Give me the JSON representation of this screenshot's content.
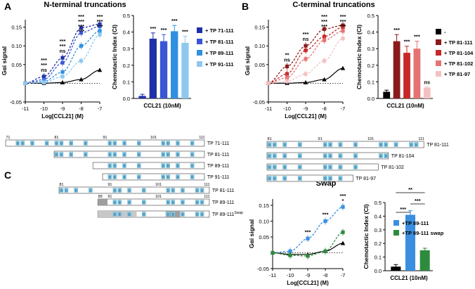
{
  "colors": {
    "black": "#000000",
    "n71": "#1f2fa8",
    "n81": "#3a56d6",
    "n89": "#2f8fe0",
    "n91": "#8fc8ee",
    "c111": "#8b1a1a",
    "c104": "#c62828",
    "c102": "#e57373",
    "c97": "#f4c1c1",
    "sw89": "#3a8ee0",
    "swap": "#2e8b3e",
    "seqbox": "#7cc1df",
    "shade": "#9e9e9e"
  },
  "panel_labels": {
    "a": "A",
    "b": "B",
    "c": "C"
  },
  "chart_data": [
    {
      "id": "A_dose",
      "type": "line",
      "title": "N-terminal truncations",
      "xlabel": "Log[CCL21] (M)",
      "ylabel": "Gαi signal",
      "x": [
        -11,
        -10,
        -9,
        -8,
        -7
      ],
      "xticks": [
        "-11",
        "-10",
        "-9",
        "-8",
        "-7"
      ],
      "yticks": [
        "-0.05",
        "0.05",
        "0.10",
        "0.15"
      ],
      "ylim": [
        -0.05,
        0.17
      ],
      "baseline_dotted": 0,
      "series": [
        {
          "name": "CCL21",
          "color": "#000000",
          "marker": "triangle",
          "values": [
            0,
            0,
            0.002,
            0.01,
            0.035
          ]
        },
        {
          "name": "+ TP 71-111",
          "color": "#1f2fa8",
          "marker": "square",
          "values": [
            0,
            0.018,
            0.068,
            0.148,
            0.158
          ]
        },
        {
          "name": "+ TP 81-111",
          "color": "#3a56d6",
          "marker": "square",
          "values": [
            0,
            0.01,
            0.055,
            0.135,
            0.152
          ]
        },
        {
          "name": "+ TP 89-111",
          "color": "#2f8fe0",
          "marker": "square",
          "values": [
            0,
            0.005,
            0.03,
            0.1,
            0.14
          ]
        },
        {
          "name": "+ TP 91-111",
          "color": "#8fc8ee",
          "marker": "square",
          "values": [
            0,
            0.002,
            0.018,
            0.06,
            0.13
          ]
        }
      ],
      "annotations": [
        {
          "x": -10,
          "lines": [
            "***",
            "***",
            "ns"
          ]
        },
        {
          "x": -9,
          "lines": [
            "***",
            "***",
            "ns"
          ]
        },
        {
          "x": -8,
          "lines": [
            "***",
            "***",
            "***",
            "***"
          ]
        },
        {
          "x": -7,
          "lines": [
            "***",
            "***",
            "***"
          ]
        }
      ]
    },
    {
      "id": "A_bar",
      "type": "bar",
      "ylabel": "Chemotactic Index (CI)",
      "xlabel": "CCL21   (10nM)",
      "ylim": [
        0,
        0.5
      ],
      "yticks": [
        "0.0",
        "0.1",
        "0.2",
        "0.3",
        "0.4",
        "0.5"
      ],
      "bars": [
        {
          "name": "CCL21",
          "value": 0.015,
          "err": 0.01,
          "color": "#1f2fa8",
          "sig": ""
        },
        {
          "name": "+ TP 71-111",
          "value": 0.36,
          "err": 0.035,
          "color": "#1f2fa8",
          "sig": "***"
        },
        {
          "name": "+ TP 81-111",
          "value": 0.345,
          "err": 0.04,
          "color": "#3a56d6",
          "sig": "***"
        },
        {
          "name": "+ TP 89-111",
          "value": 0.405,
          "err": 0.035,
          "color": "#2f8fe0",
          "sig": "***"
        },
        {
          "name": "+ TP 91-111",
          "value": 0.335,
          "err": 0.04,
          "color": "#8fc8ee",
          "sig": "***"
        }
      ],
      "legend": [
        "+ TP 71-111",
        "+ TP 81-111",
        "+ TP 89-111",
        "+ TP 91-111"
      ]
    },
    {
      "id": "B_dose",
      "type": "line",
      "title": "C-terminal truncations",
      "xlabel": "Log[CCL21] (M)",
      "ylabel": "Gαi signal",
      "x": [
        -11,
        -10,
        -9,
        -8,
        -7
      ],
      "xticks": [
        "-11",
        "-10",
        "-9",
        "-8",
        "-7"
      ],
      "yticks": [
        "-0.05",
        "0.05",
        "0.10",
        "0.15"
      ],
      "ylim": [
        -0.05,
        0.17
      ],
      "baseline_dotted": 0,
      "series": [
        {
          "name": "CCL21",
          "color": "#000000",
          "marker": "triangle",
          "values": [
            0,
            0,
            0.002,
            0.01,
            0.04
          ]
        },
        {
          "name": "+ TP 81-111",
          "color": "#8b1a1a",
          "marker": "square",
          "values": [
            0,
            0.045,
            0.1,
            0.145,
            0.155
          ]
        },
        {
          "name": "+ TP 81-104",
          "color": "#c62828",
          "marker": "square",
          "values": [
            0,
            0.025,
            0.088,
            0.125,
            0.15
          ]
        },
        {
          "name": "+ TP 81-102",
          "color": "#e57373",
          "marker": "square",
          "values": [
            0,
            0.015,
            0.065,
            0.115,
            0.14
          ]
        },
        {
          "name": "+ TP 81-97",
          "color": "#f4c1c1",
          "marker": "square",
          "values": [
            0,
            0.005,
            0.025,
            0.06,
            0.12
          ]
        }
      ],
      "annotations": [
        {
          "x": -10,
          "lines": [
            "**",
            "ns"
          ]
        },
        {
          "x": -9,
          "lines": [
            "***",
            "ns"
          ]
        },
        {
          "x": -8,
          "lines": [
            "***",
            "***",
            "***"
          ]
        },
        {
          "x": -7,
          "lines": [
            "***",
            "***",
            "***"
          ]
        }
      ]
    },
    {
      "id": "B_bar",
      "type": "bar",
      "ylabel": "Chemotactic Index (CI)",
      "xlabel": "CCL21   (10nM)",
      "ylim": [
        0,
        0.5
      ],
      "yticks": [
        "0.0",
        "0.1",
        "0.2",
        "0.3",
        "0.4",
        "0.5"
      ],
      "bars": [
        {
          "name": "-",
          "value": 0.04,
          "err": 0.01,
          "color": "#000000",
          "sig": ""
        },
        {
          "name": "+ TP 81-111",
          "value": 0.345,
          "err": 0.04,
          "color": "#8b1a1a",
          "sig": "***"
        },
        {
          "name": "+ TP 81-104",
          "value": 0.275,
          "err": 0.04,
          "color": "#c62828",
          "sig": "***"
        },
        {
          "name": "+ TP 81-102",
          "value": 0.3,
          "err": 0.045,
          "color": "#e57373",
          "sig": "***"
        },
        {
          "name": "+ TP 81-97",
          "value": 0.065,
          "err": 0.005,
          "color": "#f4c1c1",
          "sig": "ns"
        }
      ],
      "legend": [
        "-",
        "+ TP 81-111",
        "+ TP 81-104",
        "+ TP 81-102",
        "+ TP 81-97"
      ]
    },
    {
      "id": "C_dose",
      "type": "line",
      "title": "Swap",
      "xlabel": "Log[CCL21] (M)",
      "ylabel": "Gαi signal",
      "x": [
        -11,
        -10,
        -9,
        -8,
        -7
      ],
      "xticks": [
        "-11",
        "-10",
        "-9",
        "-8",
        "-7"
      ],
      "yticks": [
        "-0.05",
        "0.05",
        "0.10",
        "0.15"
      ],
      "ylim": [
        -0.05,
        0.17
      ],
      "baseline_dotted": 0,
      "series": [
        {
          "name": "CCL21",
          "color": "#000000",
          "marker": "triangle",
          "values": [
            0,
            -0.005,
            -0.005,
            0.005,
            0.03
          ]
        },
        {
          "name": "+TP 89-111",
          "color": "#3a8ee0",
          "marker": "square",
          "values": [
            0,
            0.005,
            0.045,
            0.1,
            0.145
          ]
        },
        {
          "name": "+TP 89-111 swap",
          "color": "#2e8b3e",
          "marker": "square",
          "values": [
            0,
            -0.008,
            -0.01,
            0.005,
            0.065
          ]
        }
      ],
      "annotations": [
        {
          "x": -9,
          "lines": [
            "***"
          ]
        },
        {
          "x": -8,
          "lines": [
            "***"
          ]
        },
        {
          "x": -7,
          "lines": [
            "***",
            "*"
          ]
        }
      ]
    },
    {
      "id": "C_bar",
      "type": "bar",
      "ylabel": "Chemotactic Index (CI)",
      "xlabel": "CCL21   (10nM)",
      "ylim": [
        0,
        0.5
      ],
      "yticks": [
        "0.0",
        "0.1",
        "0.2",
        "0.3",
        "0.4",
        "0.5"
      ],
      "bars": [
        {
          "name": "CCL21",
          "value": 0.03,
          "err": 0.015,
          "color": "#000000"
        },
        {
          "name": "+TP 89-111",
          "value": 0.41,
          "err": 0.03,
          "color": "#3a8ee0"
        },
        {
          "name": "+TP 89-111 swap",
          "value": 0.15,
          "err": 0.015,
          "color": "#2e8b3e"
        }
      ],
      "legend": [
        "+TP 89-111",
        "+TP 89-111 swap"
      ],
      "brackets": [
        {
          "from": 0,
          "to": 2,
          "label": "**"
        },
        {
          "from": 0,
          "to": 1,
          "label": "***"
        },
        {
          "from": 1,
          "to": 2,
          "label": "***"
        }
      ]
    }
  ],
  "constructs_A": [
    {
      "label": "TP 71-111",
      "start": 71,
      "end": 111
    },
    {
      "label": "TP 81-111",
      "start": 81,
      "end": 111
    },
    {
      "label": "TP 89-111",
      "start": 89,
      "end": 111
    },
    {
      "label": "TP 91-111",
      "start": 91,
      "end": 111
    }
  ],
  "constructs_A_numbers": [
    "71",
    "81",
    "91",
    "101",
    "111"
  ],
  "constructs_B": [
    {
      "label": "TP 81-111",
      "start": 81,
      "end": 111
    },
    {
      "label": "TP 81-104",
      "start": 81,
      "end": 104
    },
    {
      "label": "TP 81-102",
      "start": 81,
      "end": 102
    },
    {
      "label": "TP 81-97",
      "start": 81,
      "end": 97
    }
  ],
  "constructs_B_numbers": [
    "81",
    "91",
    "101",
    "111"
  ],
  "constructs_C": [
    {
      "label": "TP 81-111",
      "start": 81,
      "end": 111,
      "shade": false,
      "nums": [
        "81",
        "91",
        "101",
        "111"
      ]
    },
    {
      "label": "TP 89-111",
      "start": 89,
      "end": 111,
      "shade": true,
      "nums": [
        "89",
        "91",
        "101",
        "111"
      ]
    },
    {
      "label": "TP 89-111",
      "sup": "Swap",
      "start": 89,
      "end": 111,
      "shade": "swap",
      "nums": []
    }
  ],
  "box_glyph": "B"
}
